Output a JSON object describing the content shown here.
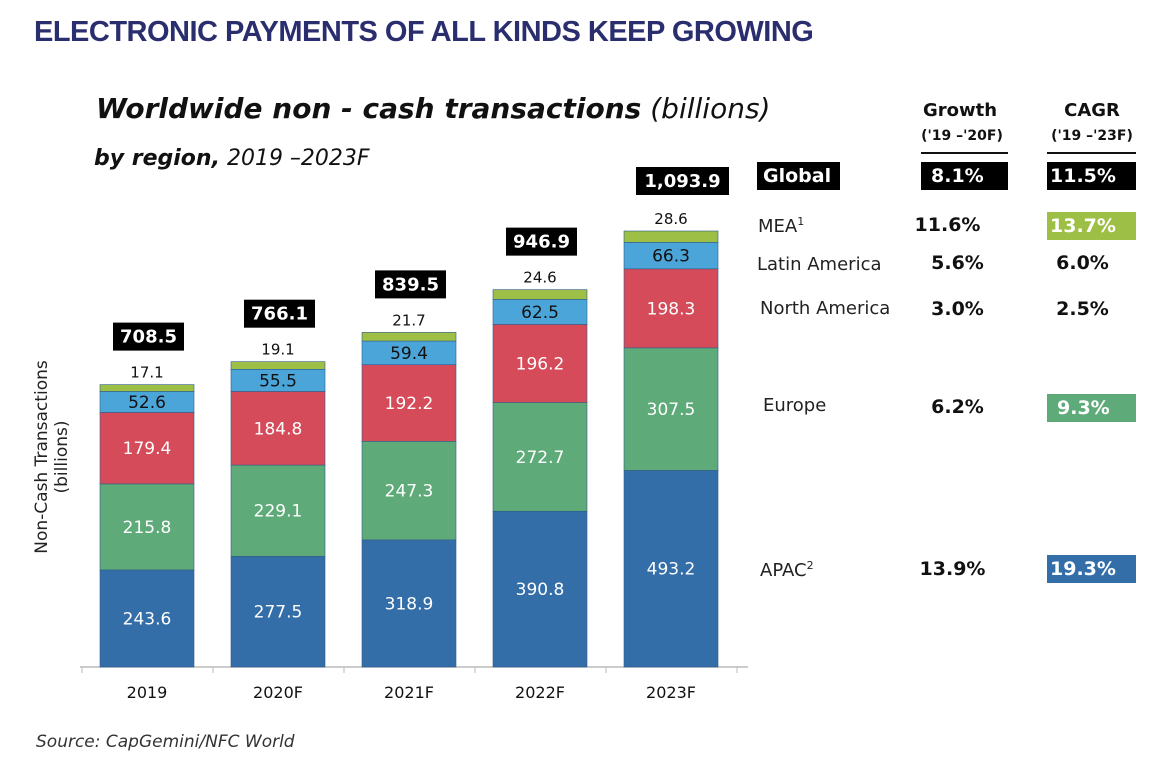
{
  "headline": "ELECTRONIC PAYMENTS OF ALL KINDS KEEP GROWING",
  "source": "Source: CapGemini/NFC World",
  "colors": {
    "APAC": "#336ea8",
    "Europe": "#5eab79",
    "North America": "#d54b59",
    "Latin America": "#4ba5d8",
    "MEA": "#9dbf46",
    "headline": "#2b2e6e"
  },
  "chart_data": {
    "type": "bar",
    "stacked": true,
    "title": "Worldwide non - cash transactions",
    "title_unit": "(billions)",
    "subtitle_bold": "by region,",
    "subtitle": "2019 –2023F",
    "ylabel": "Non-Cash Transactions (billions)",
    "xlabel": "",
    "categories": [
      "2019",
      "2020F",
      "2021F",
      "2022F",
      "2023F"
    ],
    "series": [
      {
        "name": "APAC",
        "values": [
          243.6,
          277.5,
          318.9,
          390.8,
          493.2
        ]
      },
      {
        "name": "Europe",
        "values": [
          215.8,
          229.1,
          247.3,
          272.7,
          307.5
        ]
      },
      {
        "name": "North America",
        "values": [
          179.4,
          184.8,
          192.2,
          196.2,
          198.3
        ]
      },
      {
        "name": "Latin America",
        "values": [
          52.6,
          55.5,
          59.4,
          62.5,
          66.3
        ]
      },
      {
        "name": "MEA",
        "values": [
          17.1,
          19.1,
          21.7,
          24.6,
          28.6
        ]
      }
    ],
    "totals": [
      "708.5",
      "766.1",
      "839.5",
      "946.9",
      "1,093.9"
    ],
    "ylim": [
      0,
      1100
    ],
    "grid": false
  },
  "table": {
    "growth_header": "Growth",
    "growth_period": "('19 –'20F)",
    "cagr_header": "CAGR",
    "cagr_period": "('19 –'23F)",
    "rows": [
      {
        "label": "Global",
        "growth": "8.1%",
        "cagr": "11.5%"
      },
      {
        "label": "MEA",
        "sup": "1",
        "growth": "11.6%",
        "cagr": "13.7%"
      },
      {
        "label": "Latin America",
        "growth": "5.6%",
        "cagr": "6.0%"
      },
      {
        "label": "North America",
        "growth": "3.0%",
        "cagr": "2.5%"
      },
      {
        "label": "Europe",
        "growth": "6.2%",
        "cagr": "9.3%"
      },
      {
        "label": "APAC",
        "sup": "2",
        "growth": "13.9%",
        "cagr": "19.3%"
      }
    ]
  }
}
